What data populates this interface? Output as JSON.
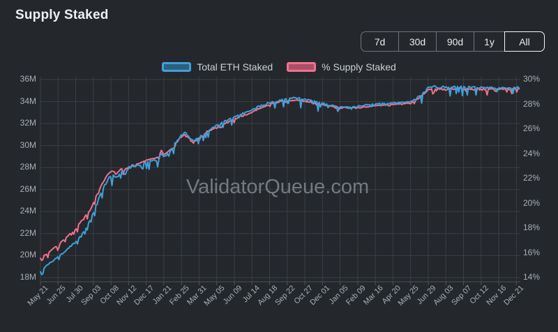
{
  "header": {
    "title": "Supply Staked"
  },
  "range_buttons": {
    "options": [
      "7d",
      "30d",
      "90d",
      "1y",
      "All"
    ],
    "selected": "All"
  },
  "watermark": "ValidatorQueue.com",
  "colors": {
    "background": "#24282c",
    "grid": "#3a3f45",
    "axis": "#4c5258",
    "tick_text": "#a9b0b7",
    "blue": "#3fa0dc",
    "blue_fill": "#2d5f80",
    "pink": "#f0718f",
    "pink_fill": "#aa5068"
  },
  "chart_data": {
    "type": "line",
    "title": "Supply Staked",
    "x_axis_type": "time",
    "grid": true,
    "legend_position": "top",
    "x_tick_labels": [
      "May 21",
      "Jun 25",
      "Jul 30",
      "Sep 03",
      "Oct 08",
      "Nov 12",
      "Dec 17",
      "Jan 21",
      "Feb 25",
      "Mar 31",
      "May 05",
      "Jun 09",
      "Jul 14",
      "Aug 18",
      "Sep 22",
      "Oct 27",
      "Dec 01",
      "Jan 05",
      "Feb 09",
      "Mar 16",
      "Apr 20",
      "May 25",
      "Jun 29",
      "Aug 03",
      "Sep 07",
      "Oct 12",
      "Nov 16",
      "Dec 21"
    ],
    "y_left": {
      "ticks": [
        "36M",
        "34M",
        "32M",
        "30M",
        "28M",
        "26M",
        "24M",
        "22M",
        "20M",
        "18M"
      ],
      "max": 36,
      "min": 18
    },
    "y_right": {
      "ticks": [
        "30%",
        "28%",
        "26%",
        "24%",
        "22%",
        "20%",
        "18%",
        "16%",
        "14%"
      ],
      "max": 30,
      "min": 14
    },
    "points_format": "[x_tick_index, value]",
    "series": [
      {
        "name": "Total ETH Staked",
        "axis": "left",
        "unit": "M ETH",
        "color": "#3fa0dc",
        "legend_fill": "#2d5f80",
        "seed": 7,
        "up_amp": 0.06,
        "noise": [
          [
            0,
            1,
            0.45
          ],
          [
            1,
            3,
            0.5
          ],
          [
            3,
            5,
            1.0
          ],
          [
            5,
            8,
            0.85
          ],
          [
            8,
            12,
            0.65
          ],
          [
            12,
            17,
            0.9
          ],
          [
            17,
            21,
            0.3
          ],
          [
            21,
            27.3,
            0.9
          ]
        ],
        "points": [
          [
            0,
            18.6
          ],
          [
            0.25,
            18.95
          ],
          [
            0.5,
            19.3
          ],
          [
            0.75,
            19.6
          ],
          [
            1,
            19.9
          ],
          [
            1.5,
            20.6
          ],
          [
            2,
            21.3
          ],
          [
            2.5,
            22.3
          ],
          [
            2.8,
            23.2
          ],
          [
            3,
            24
          ],
          [
            3.3,
            25.2
          ],
          [
            3.6,
            26.3
          ],
          [
            3.9,
            27.2
          ],
          [
            4.1,
            27.4
          ],
          [
            4.3,
            27.1
          ],
          [
            4.6,
            27.7
          ],
          [
            4.8,
            27.5
          ],
          [
            5,
            28
          ],
          [
            5.3,
            28.3
          ],
          [
            5.6,
            28.2
          ],
          [
            6,
            28.55
          ],
          [
            6.4,
            28.7
          ],
          [
            6.7,
            28.8
          ],
          [
            6.85,
            29.4
          ],
          [
            7,
            29
          ],
          [
            7.3,
            29.4
          ],
          [
            7.6,
            30.2
          ],
          [
            8,
            31
          ],
          [
            8.25,
            31.3
          ],
          [
            8.5,
            30.6
          ],
          [
            8.8,
            30.55
          ],
          [
            9,
            30.8
          ],
          [
            9.4,
            31.2
          ],
          [
            9.7,
            31.6
          ],
          [
            10,
            31.9
          ],
          [
            10.5,
            32.3
          ],
          [
            11,
            32.6
          ],
          [
            11.5,
            33
          ],
          [
            12,
            33.3
          ],
          [
            12.5,
            33.7
          ],
          [
            13,
            34
          ],
          [
            13.5,
            34.2
          ],
          [
            14,
            34.3
          ],
          [
            14.6,
            34.4
          ],
          [
            15,
            34.25
          ],
          [
            15.5,
            34.1
          ],
          [
            16,
            33.9
          ],
          [
            16.5,
            33.7
          ],
          [
            17,
            33.55
          ],
          [
            17.5,
            33.5
          ],
          [
            18,
            33.6
          ],
          [
            18.5,
            33.7
          ],
          [
            19,
            33.8
          ],
          [
            19.5,
            33.85
          ],
          [
            20,
            33.9
          ],
          [
            20.5,
            33.95
          ],
          [
            21,
            34
          ],
          [
            21.3,
            34.3
          ],
          [
            21.7,
            34.8
          ],
          [
            22,
            35.3
          ],
          [
            22.4,
            35.45
          ],
          [
            23,
            35.35
          ],
          [
            24,
            35.4
          ],
          [
            25,
            35.3
          ],
          [
            26,
            35.3
          ],
          [
            26.5,
            35.25
          ],
          [
            27,
            35.3
          ],
          [
            27.2,
            35.35
          ]
        ]
      },
      {
        "name": "% Supply Staked",
        "axis": "right",
        "unit": "%",
        "color": "#f0718f",
        "legend_fill": "#aa5068",
        "seed": 13,
        "up_amp": 0.12,
        "noise": [
          [
            0,
            3,
            0.5
          ],
          [
            3,
            5,
            0.45
          ],
          [
            5,
            8,
            0.35
          ],
          [
            8,
            12,
            0.3
          ],
          [
            12,
            17,
            0.18
          ],
          [
            17,
            21,
            0.12
          ],
          [
            21,
            22,
            0.3
          ],
          [
            22,
            27.3,
            0.55
          ]
        ],
        "points": [
          [
            0,
            15.6
          ],
          [
            0.5,
            16.1
          ],
          [
            1,
            16.7
          ],
          [
            1.5,
            17.3
          ],
          [
            2,
            18
          ],
          [
            2.5,
            18.9
          ],
          [
            2.8,
            19.5
          ],
          [
            3,
            20.1
          ],
          [
            3.3,
            21
          ],
          [
            3.6,
            21.9
          ],
          [
            3.9,
            22.5
          ],
          [
            4.1,
            22.65
          ],
          [
            4.3,
            22.4
          ],
          [
            4.6,
            22.8
          ],
          [
            4.8,
            22.65
          ],
          [
            5,
            23
          ],
          [
            5.5,
            23.2
          ],
          [
            6,
            23.5
          ],
          [
            6.4,
            23.65
          ],
          [
            6.7,
            23.75
          ],
          [
            6.85,
            24.3
          ],
          [
            7,
            23.95
          ],
          [
            7.3,
            24.25
          ],
          [
            7.6,
            24.8
          ],
          [
            8,
            25.4
          ],
          [
            8.25,
            25.6
          ],
          [
            8.5,
            25.1
          ],
          [
            8.8,
            25.05
          ],
          [
            9,
            25.3
          ],
          [
            9.5,
            25.8
          ],
          [
            10,
            26.2
          ],
          [
            10.5,
            26.5
          ],
          [
            11,
            26.8
          ],
          [
            11.5,
            27.1
          ],
          [
            12,
            27.4
          ],
          [
            12.5,
            27.7
          ],
          [
            13,
            28
          ],
          [
            13.5,
            28.2
          ],
          [
            14,
            28.3
          ],
          [
            14.6,
            28.35
          ],
          [
            15,
            28.25
          ],
          [
            15.5,
            28.1
          ],
          [
            16,
            28
          ],
          [
            16.5,
            27.85
          ],
          [
            17,
            27.75
          ],
          [
            17.5,
            27.7
          ],
          [
            18,
            27.75
          ],
          [
            18.5,
            27.8
          ],
          [
            19,
            27.9
          ],
          [
            19.5,
            27.95
          ],
          [
            20,
            28
          ],
          [
            20.5,
            28.05
          ],
          [
            21,
            28.1
          ],
          [
            21.3,
            28.35
          ],
          [
            21.7,
            28.75
          ],
          [
            22,
            29.2
          ],
          [
            22.4,
            29.3
          ],
          [
            23,
            29.25
          ],
          [
            24,
            29.3
          ],
          [
            25,
            29.25
          ],
          [
            26,
            29.25
          ],
          [
            27,
            29.3
          ],
          [
            27.2,
            29.3
          ]
        ]
      }
    ]
  }
}
